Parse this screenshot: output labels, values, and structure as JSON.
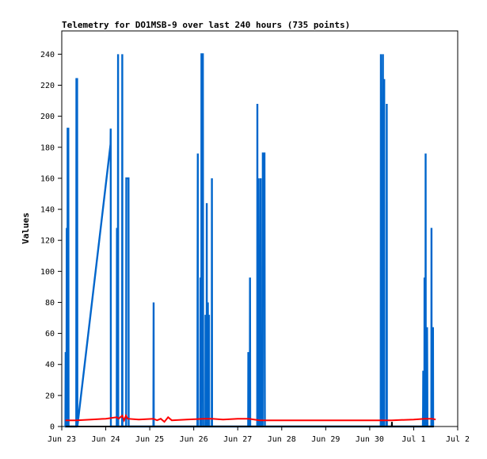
{
  "chart_data": {
    "type": "line",
    "title": "Telemetry for DO1MSB-9 over last 240 hours (735 points)",
    "xlabel": "",
    "ylabel": "Values",
    "xlim": [
      "2023-06-23 00:00",
      "2023-07-02 00:00"
    ],
    "ylim": [
      0,
      255
    ],
    "xticks": [
      "Jun 23",
      "Jun 24",
      "Jun 25",
      "Jun 26",
      "Jun 27",
      "Jun 28",
      "Jun 29",
      "Jun 30",
      "Jul 1",
      "Jul 2"
    ],
    "yticks": [
      0,
      20,
      40,
      60,
      80,
      100,
      120,
      140,
      160,
      180,
      200,
      220,
      240
    ],
    "grid": false,
    "series": [
      {
        "color": "#0066cc",
        "points": [
          [
            "2023-06-23 02:00",
            0
          ],
          [
            "2023-06-23 02:06",
            48
          ],
          [
            "2023-06-23 02:12",
            0
          ],
          [
            "2023-06-23 02:30",
            0
          ],
          [
            "2023-06-23 02:36",
            25
          ],
          [
            "2023-06-23 02:42",
            128
          ],
          [
            "2023-06-23 02:48",
            0
          ],
          [
            "2023-06-23 03:06",
            0
          ],
          [
            "2023-06-23 03:12",
            192
          ],
          [
            "2023-06-23 03:36",
            192
          ],
          [
            "2023-06-23 03:42",
            0
          ],
          [
            "2023-06-23 07:54",
            0
          ],
          [
            "2023-06-23 08:00",
            224
          ],
          [
            "2023-06-23 08:24",
            224
          ],
          [
            "2023-06-23 08:30",
            0
          ],
          [
            "2023-06-24 02:36",
            182
          ],
          [
            "2023-06-24 02:42",
            192
          ],
          [
            "2023-06-24 02:48",
            0
          ],
          [
            "2023-06-24 06:00",
            0
          ],
          [
            "2023-06-24 06:06",
            128
          ],
          [
            "2023-06-24 06:12",
            0
          ],
          [
            "2023-06-24 06:36",
            0
          ],
          [
            "2023-06-24 06:42",
            240
          ],
          [
            "2023-06-24 06:48",
            0
          ],
          [
            "2023-06-24 08:54",
            0
          ],
          [
            "2023-06-24 09:00",
            240
          ],
          [
            "2023-06-24 09:06",
            0
          ],
          [
            "2023-06-24 11:06",
            0
          ],
          [
            "2023-06-24 11:12",
            160
          ],
          [
            "2023-06-24 12:24",
            160
          ],
          [
            "2023-06-24 12:30",
            0
          ],
          [
            "2023-06-25 02:00",
            0
          ],
          [
            "2023-06-25 02:06",
            80
          ],
          [
            "2023-06-25 02:12",
            0
          ],
          [
            "2023-06-26 02:00",
            0
          ],
          [
            "2023-06-26 02:06",
            88
          ],
          [
            "2023-06-26 02:12",
            176
          ],
          [
            "2023-06-26 02:18",
            0
          ],
          [
            "2023-06-26 03:36",
            0
          ],
          [
            "2023-06-26 03:42",
            96
          ],
          [
            "2023-06-26 03:48",
            0
          ],
          [
            "2023-06-26 04:06",
            0
          ],
          [
            "2023-06-26 04:12",
            240
          ],
          [
            "2023-06-26 05:00",
            240
          ],
          [
            "2023-06-26 05:06",
            48
          ],
          [
            "2023-06-26 05:12",
            0
          ],
          [
            "2023-06-26 06:18",
            0
          ],
          [
            "2023-06-26 06:24",
            72
          ],
          [
            "2023-06-26 06:30",
            0
          ],
          [
            "2023-06-26 07:00",
            0
          ],
          [
            "2023-06-26 07:06",
            144
          ],
          [
            "2023-06-26 07:12",
            0
          ],
          [
            "2023-06-26 07:36",
            0
          ],
          [
            "2023-06-26 07:42",
            80
          ],
          [
            "2023-06-26 07:48",
            20
          ],
          [
            "2023-06-26 07:54",
            0
          ],
          [
            "2023-06-26 08:12",
            0
          ],
          [
            "2023-06-26 08:18",
            72
          ],
          [
            "2023-06-26 08:24",
            0
          ],
          [
            "2023-06-26 09:48",
            0
          ],
          [
            "2023-06-26 09:54",
            160
          ],
          [
            "2023-06-26 10:00",
            0
          ],
          [
            "2023-06-27 05:42",
            0
          ],
          [
            "2023-06-27 05:48",
            48
          ],
          [
            "2023-06-27 05:54",
            0
          ],
          [
            "2023-06-27 06:36",
            0
          ],
          [
            "2023-06-27 06:42",
            96
          ],
          [
            "2023-06-27 06:48",
            0
          ],
          [
            "2023-06-27 10:36",
            0
          ],
          [
            "2023-06-27 10:42",
            208
          ],
          [
            "2023-06-27 10:48",
            0
          ],
          [
            "2023-06-27 11:18",
            0
          ],
          [
            "2023-06-27 11:24",
            160
          ],
          [
            "2023-06-27 11:30",
            80
          ],
          [
            "2023-06-27 11:36",
            0
          ],
          [
            "2023-06-27 12:24",
            0
          ],
          [
            "2023-06-27 12:30",
            160
          ],
          [
            "2023-06-27 12:36",
            32
          ],
          [
            "2023-06-27 12:42",
            0
          ],
          [
            "2023-06-27 13:36",
            0
          ],
          [
            "2023-06-27 13:42",
            176
          ],
          [
            "2023-06-27 14:36",
            176
          ],
          [
            "2023-06-27 14:42",
            48
          ],
          [
            "2023-06-27 14:48",
            0
          ],
          [
            "2023-06-30 06:00",
            0
          ],
          [
            "2023-06-30 06:06",
            240
          ],
          [
            "2023-06-30 06:12",
            192
          ],
          [
            "2023-06-30 06:18",
            0
          ],
          [
            "2023-06-30 07:06",
            0
          ],
          [
            "2023-06-30 07:12",
            240
          ],
          [
            "2023-06-30 07:18",
            0
          ],
          [
            "2023-06-30 07:48",
            0
          ],
          [
            "2023-06-30 07:54",
            224
          ],
          [
            "2023-06-30 08:00",
            0
          ],
          [
            "2023-06-30 09:12",
            0
          ],
          [
            "2023-06-30 09:18",
            208
          ],
          [
            "2023-06-30 09:24",
            0
          ],
          [
            "2023-07-01 05:00",
            0
          ],
          [
            "2023-07-01 05:06",
            12
          ],
          [
            "2023-07-01 05:12",
            36
          ],
          [
            "2023-07-01 05:18",
            0
          ],
          [
            "2023-07-01 05:48",
            0
          ],
          [
            "2023-07-01 05:54",
            96
          ],
          [
            "2023-07-01 06:00",
            64
          ],
          [
            "2023-07-01 06:06",
            0
          ],
          [
            "2023-07-01 06:24",
            0
          ],
          [
            "2023-07-01 06:30",
            176
          ],
          [
            "2023-07-01 06:36",
            0
          ],
          [
            "2023-07-01 07:12",
            0
          ],
          [
            "2023-07-01 07:18",
            64
          ],
          [
            "2023-07-01 07:24",
            32
          ],
          [
            "2023-07-01 07:30",
            0
          ],
          [
            "2023-07-01 09:36",
            0
          ],
          [
            "2023-07-01 09:42",
            128
          ],
          [
            "2023-07-01 09:48",
            0
          ],
          [
            "2023-07-01 10:24",
            0
          ],
          [
            "2023-07-01 10:30",
            64
          ],
          [
            "2023-07-01 10:36",
            0
          ]
        ]
      },
      {
        "color": "#ff0000",
        "points": [
          [
            "2023-06-23 02:00",
            4
          ],
          [
            "2023-06-23 08:00",
            4
          ],
          [
            "2023-06-23 16:00",
            4.5
          ],
          [
            "2023-06-24 00:00",
            5
          ],
          [
            "2023-06-24 06:00",
            6
          ],
          [
            "2023-06-24 07:00",
            5
          ],
          [
            "2023-06-24 09:00",
            7
          ],
          [
            "2023-06-24 10:00",
            4
          ],
          [
            "2023-06-24 11:00",
            7
          ],
          [
            "2023-06-24 12:00",
            5
          ],
          [
            "2023-06-24 18:00",
            4.5
          ],
          [
            "2023-06-25 02:00",
            5
          ],
          [
            "2023-06-25 04:00",
            4
          ],
          [
            "2023-06-25 06:00",
            5
          ],
          [
            "2023-06-25 08:00",
            3
          ],
          [
            "2023-06-25 10:00",
            6
          ],
          [
            "2023-06-25 12:00",
            4
          ],
          [
            "2023-06-25 20:00",
            4.5
          ],
          [
            "2023-06-26 06:00",
            5
          ],
          [
            "2023-06-26 10:00",
            5
          ],
          [
            "2023-06-26 16:00",
            4.5
          ],
          [
            "2023-06-27 00:00",
            5
          ],
          [
            "2023-06-27 06:00",
            5
          ],
          [
            "2023-06-27 12:00",
            4
          ],
          [
            "2023-06-28 00:00",
            4
          ],
          [
            "2023-06-29 00:00",
            4
          ],
          [
            "2023-06-30 00:00",
            4
          ],
          [
            "2023-06-30 12:00",
            4
          ],
          [
            "2023-07-01 00:00",
            4.5
          ],
          [
            "2023-07-01 06:00",
            5
          ],
          [
            "2023-07-01 10:00",
            5
          ],
          [
            "2023-07-01 12:00",
            4.5
          ]
        ]
      },
      {
        "color": "#000000",
        "points": [
          [
            "2023-06-23 02:00",
            0
          ],
          [
            "2023-06-30 12:00",
            0
          ],
          [
            "2023-06-30 12:06",
            3
          ],
          [
            "2023-06-30 12:12",
            0
          ],
          [
            "2023-07-01 11:00",
            0
          ]
        ]
      }
    ]
  }
}
